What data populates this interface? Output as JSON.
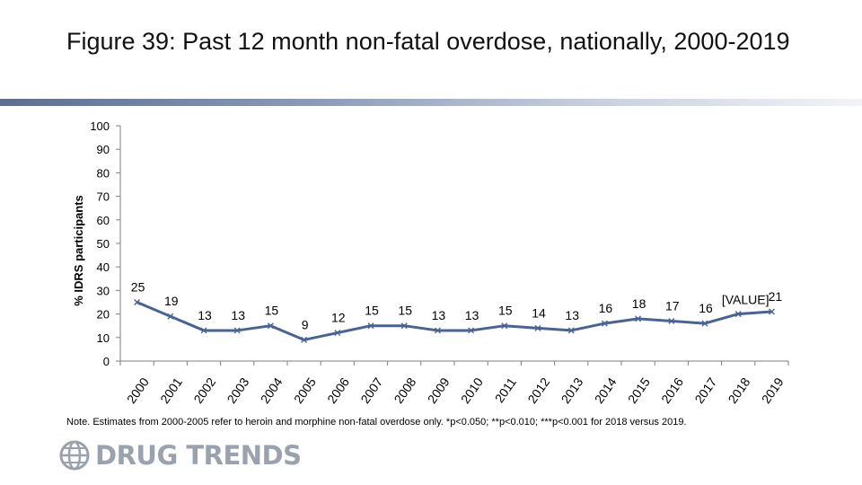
{
  "title": "Figure 39: Past 12 month non-fatal overdose, nationally, 2000-2019",
  "note": "Note. Estimates from 2000-2005 refer to heroin and morphine non-fatal overdose only. *p<0.050; **p<0.010; ***p<0.001 for 2018 versus 2019.",
  "logo": {
    "text": "DRUG TRENDS",
    "icon": "globe-icon"
  },
  "colors": {
    "line": "#4a6491",
    "marker": "#4a6491",
    "axis": "#7f7f7f",
    "accent": "#5c6f93"
  },
  "chart_data": {
    "type": "line",
    "title": "",
    "xlabel": "",
    "ylabel": "% IDRS participants",
    "ylim": [
      0,
      100
    ],
    "yticks": [
      0,
      10,
      20,
      30,
      40,
      50,
      60,
      70,
      80,
      90,
      100
    ],
    "grid": false,
    "legend": "none",
    "categories": [
      "2000",
      "2001",
      "2002",
      "2003",
      "2004",
      "2005",
      "2006",
      "2007",
      "2008",
      "2009",
      "2010",
      "2011",
      "2012",
      "2013",
      "2014",
      "2015",
      "2016",
      "2017",
      "2018",
      "2019"
    ],
    "series": [
      {
        "values": [
          25,
          19,
          13,
          13,
          15,
          9,
          12,
          15,
          15,
          13,
          13,
          15,
          14,
          13,
          16,
          18,
          17,
          16,
          20,
          21
        ],
        "data_labels": [
          "25",
          "19",
          "13",
          "13",
          "15",
          "9",
          "12",
          "15",
          "15",
          "13",
          "13",
          "15",
          "14",
          "13",
          "16",
          "18",
          "17",
          "16",
          "[VALUE]",
          "21"
        ]
      }
    ]
  }
}
